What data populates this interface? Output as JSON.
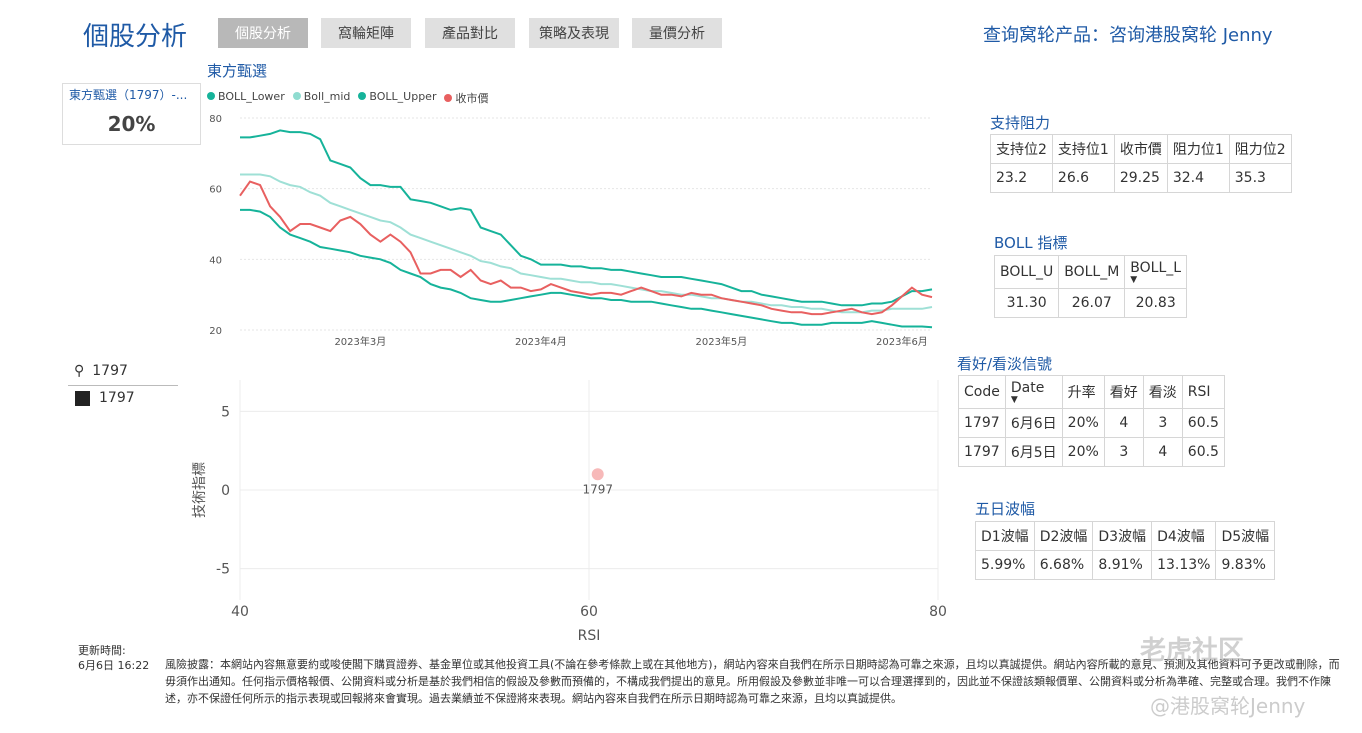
{
  "header": {
    "title": "個股分析",
    "tabs": [
      "個股分析",
      "窩輪矩陣",
      "產品對比",
      "策略及表現",
      "量價分析"
    ],
    "query": "查询窝轮产品：咨询港股窝轮 Jenny"
  },
  "card": {
    "label": "東方甄選（1797）-...",
    "value": "20%"
  },
  "line_chart_title": "東方甄選",
  "legend": [
    {
      "name": "BOLL_Lower",
      "color": "#16b39a"
    },
    {
      "name": "Boll_mid",
      "color": "#8fdcd0"
    },
    {
      "name": "BOLL_Upper",
      "color": "#16b39a"
    },
    {
      "name": "收市價",
      "color": "#e86060"
    }
  ],
  "colors": {
    "upper": "#16b39a",
    "mid": "#9fe0d6",
    "lower": "#16b39a",
    "close": "#e86060",
    "point": "#f7b9b9",
    "brand": "#1f5aa6"
  },
  "chart_data": [
    {
      "type": "line",
      "title": "東方甄選",
      "x_ticks": [
        "2023年3月",
        "2023年4月",
        "2023年5月",
        "2023年6月"
      ],
      "x_tick_index": [
        12,
        30,
        48,
        66
      ],
      "ylim": [
        20,
        80
      ],
      "y_ticks": [
        20,
        40,
        60,
        80
      ],
      "series": [
        {
          "name": "BOLL_Upper",
          "values": [
            74.5,
            74.5,
            75,
            75.5,
            76.5,
            76,
            76,
            75.5,
            74,
            68,
            67,
            66,
            63,
            61,
            61,
            60.5,
            60.5,
            57,
            56.5,
            56,
            55,
            54,
            54.5,
            54,
            49,
            48,
            47,
            44,
            41,
            40,
            38.5,
            38.5,
            38.5,
            38,
            38,
            37.5,
            37.5,
            37,
            37,
            36.5,
            36,
            35.5,
            35,
            35,
            35,
            34.5,
            34,
            33.5,
            33,
            32,
            31,
            31,
            30,
            29.5,
            29,
            28.5,
            28,
            28,
            28,
            27.5,
            27,
            27,
            27,
            27.5,
            27.5,
            28,
            29.5,
            31,
            31,
            31.5
          ]
        },
        {
          "name": "Boll_mid",
          "values": [
            64,
            64,
            64,
            63.5,
            62,
            61,
            60.5,
            59,
            58,
            56,
            55,
            54,
            53,
            52,
            51,
            50.5,
            49,
            47,
            46,
            45,
            44,
            43,
            42,
            41,
            39.5,
            39,
            38,
            37.5,
            36,
            35.5,
            35,
            34.5,
            34.5,
            34,
            33.5,
            33.5,
            33,
            33,
            32.5,
            32,
            31.5,
            31,
            31,
            30.5,
            30,
            30,
            29.5,
            29,
            29,
            28.5,
            28,
            28,
            27.5,
            27,
            27,
            26.5,
            26.5,
            26,
            26,
            25.5,
            25,
            25,
            25,
            25.5,
            25.5,
            26,
            26,
            26,
            26,
            26.5
          ]
        },
        {
          "name": "BOLL_Lower",
          "values": [
            54,
            54,
            53.5,
            52,
            49,
            47,
            46,
            45,
            43.5,
            43,
            42.5,
            42,
            41,
            40.5,
            40,
            39,
            37,
            36,
            35,
            33,
            32,
            31.5,
            30.5,
            29,
            28.5,
            28,
            28,
            28.5,
            29,
            29.5,
            30,
            30.5,
            30.5,
            30,
            29.5,
            29,
            29,
            28.5,
            28.5,
            28,
            28,
            28,
            27.5,
            27,
            26.5,
            26,
            26,
            25.5,
            25,
            24.5,
            24,
            23.5,
            23,
            22.5,
            22,
            22,
            21.5,
            21.5,
            21.5,
            22,
            22,
            22,
            22,
            22.5,
            22,
            21.5,
            21,
            21,
            21,
            20.8
          ]
        },
        {
          "name": "收市價",
          "values": [
            58,
            62,
            61,
            55,
            52,
            48,
            50,
            50,
            49,
            48,
            51,
            52,
            50,
            47,
            45,
            47,
            45,
            42,
            36,
            36,
            37,
            37,
            35,
            37,
            34,
            33,
            34,
            32,
            32,
            31,
            31.5,
            33,
            32,
            31,
            30.5,
            30,
            30.5,
            30.5,
            30,
            31,
            32,
            31,
            30,
            30,
            29.5,
            30.5,
            30,
            30,
            29,
            28.5,
            28,
            27.5,
            27,
            26,
            25.5,
            25,
            25,
            24.5,
            24.5,
            25,
            25.5,
            26,
            25,
            24.5,
            25,
            27,
            29.5,
            32,
            30,
            29.3
          ]
        }
      ]
    },
    {
      "type": "scatter",
      "xlabel": "RSI",
      "ylabel": "技術指標",
      "xlim": [
        40,
        80
      ],
      "ylim": [
        -7,
        7
      ],
      "x_ticks": [
        40,
        60,
        80
      ],
      "y_ticks": [
        5,
        0,
        -5
      ],
      "points": [
        {
          "label": "1797",
          "x": 60.5,
          "y": 1
        }
      ]
    }
  ],
  "slicer": {
    "search": "1797",
    "item": "1797"
  },
  "support": {
    "title": "支持阻力",
    "headers": [
      "支持位2",
      "支持位1",
      "收市價",
      "阻力位1",
      "阻力位2"
    ],
    "values": [
      "23.2",
      "26.6",
      "29.25",
      "32.4",
      "35.3"
    ]
  },
  "boll": {
    "title": "BOLL 指標",
    "headers": [
      "BOLL_U",
      "BOLL_M",
      "BOLL_L"
    ],
    "values": [
      "31.30",
      "26.07",
      "20.83"
    ]
  },
  "signal": {
    "title": "看好/看淡信號",
    "headers": [
      "Code",
      "Date",
      "升率",
      "看好",
      "看淡",
      "RSI"
    ],
    "rows": [
      [
        "1797",
        "6月6日",
        "20%",
        "4",
        "3",
        "60.5"
      ],
      [
        "1797",
        "6月5日",
        "20%",
        "3",
        "4",
        "60.5"
      ]
    ]
  },
  "wave": {
    "title": "五日波幅",
    "headers": [
      "D1波幅",
      "D2波幅",
      "D3波幅",
      "D4波幅",
      "D5波幅"
    ],
    "values": [
      "5.99%",
      "6.68%",
      "8.91%",
      "13.13%",
      "9.83%"
    ]
  },
  "update": {
    "label": "更新時間:",
    "time": "6月6日 16:22"
  },
  "disclaimer": "風險披露：本網站內容無意要約或唆使閣下購買證券、基金單位或其他投資工具(不論在參考條款上或在其他地方)，網站內容來自我們在所示日期時認為可靠之來源，且均以真誠提供。網站內容所載的意見、預測及其他資料可予更改或刪除，而毋須作出通知。任何指示價格報價、公開資料或分析是基於我們相信的假設及參數而預備的，不構成我們提出的意見。所用假設及參數並非唯一可以合理選擇到的，因此並不保證該類報價單、公開資料或分析為準確、完整或合理。我們不作陳述，亦不保證任何所示的指示表現或回報將來會實現。過去業績並不保證將來表現。網站內容來自我們在所示日期時認為可靠之來源，且均以真誠提供。",
  "watermark": {
    "top": "老虎社区",
    "bottom": "@港股窝轮Jenny"
  }
}
